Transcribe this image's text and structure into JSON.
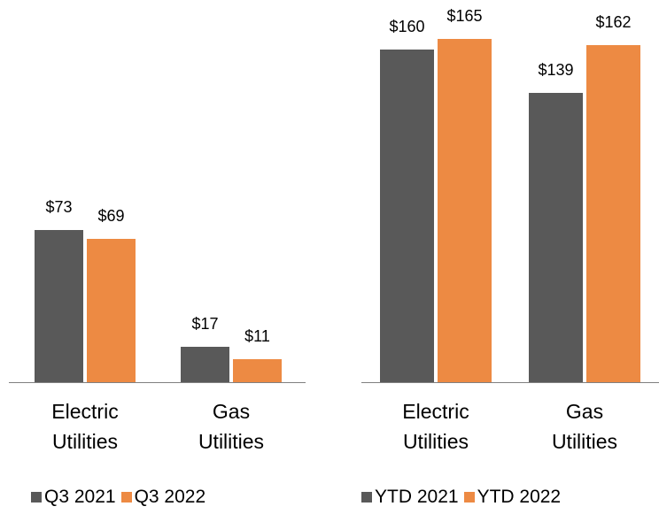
{
  "chart_data": [
    {
      "type": "bar",
      "categories": [
        "Electric Utilities",
        "Gas Utilities"
      ],
      "series": [
        {
          "name": "Q3 2021",
          "color": "#595959",
          "values": [
            73,
            17
          ],
          "value_labels": [
            "$73",
            "$17"
          ]
        },
        {
          "name": "Q3 2022",
          "color": "#ed8a43",
          "values": [
            69,
            11
          ],
          "value_labels": [
            "$69",
            "$11"
          ]
        }
      ]
    },
    {
      "type": "bar",
      "categories": [
        "Electric Utilities",
        "Gas Utilities"
      ],
      "series": [
        {
          "name": "YTD 2021",
          "color": "#595959",
          "values": [
            160,
            139
          ],
          "value_labels": [
            "$160",
            "$139"
          ]
        },
        {
          "name": "YTD 2022",
          "color": "#ed8a43",
          "values": [
            165,
            162
          ],
          "value_labels": [
            "$165",
            "$162"
          ]
        }
      ]
    }
  ]
}
